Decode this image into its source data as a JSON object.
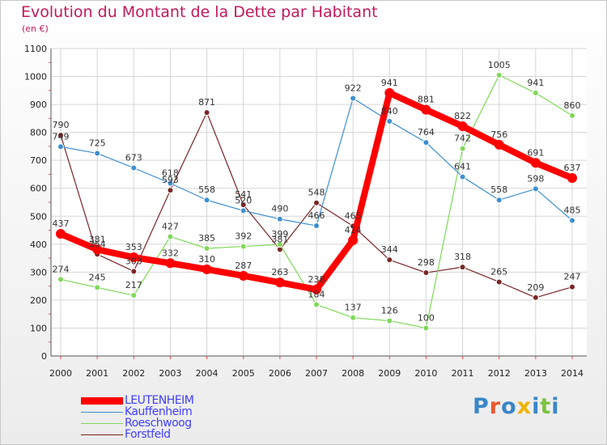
{
  "chart_data": {
    "type": "line",
    "title": "Evolution du Montant de la Dette par Habitant",
    "subtitle": "(en €)",
    "categories": [
      "2000",
      "2001",
      "2002",
      "2003",
      "2004",
      "2005",
      "2006",
      "2007",
      "2008",
      "2009",
      "2010",
      "2011",
      "2012",
      "2013",
      "2014"
    ],
    "ylim": [
      0,
      1100
    ],
    "yticks": [
      0,
      100,
      200,
      300,
      400,
      500,
      600,
      700,
      800,
      900,
      1000,
      1100
    ],
    "grid": true,
    "legend_position": "bottom-left",
    "series": [
      {
        "name": "LEUTENHEIM",
        "color": "#ff0000",
        "values": [
          437,
          381,
          353,
          332,
          310,
          287,
          263,
          238,
          414,
          941,
          881,
          822,
          756,
          691,
          637
        ]
      },
      {
        "name": "Kauffenheim",
        "color": "#3d8fd0",
        "values": [
          749,
          725,
          673,
          618,
          558,
          520,
          490,
          466,
          922,
          840,
          764,
          641,
          558,
          598,
          485
        ]
      },
      {
        "name": "Roeschwoog",
        "color": "#7ed957",
        "values": [
          274,
          245,
          217,
          427,
          385,
          392,
          399,
          184,
          137,
          126,
          100,
          742,
          1005,
          941,
          860
        ]
      },
      {
        "name": "Forstfeld",
        "color": "#7a2626",
        "values": [
          790,
          364,
          303,
          593,
          871,
          541,
          381,
          548,
          465,
          344,
          298,
          318,
          265,
          209,
          247
        ]
      }
    ]
  },
  "brand": {
    "text": "Proxiti",
    "letters": [
      "P",
      "r",
      "o",
      "x",
      "i",
      "t",
      "i"
    ],
    "colors": [
      "#3a86c8",
      "#e8592a",
      "#3a86c8",
      "#f0b400",
      "#3a86c8",
      "#7cc242",
      "#3a86c8"
    ]
  }
}
